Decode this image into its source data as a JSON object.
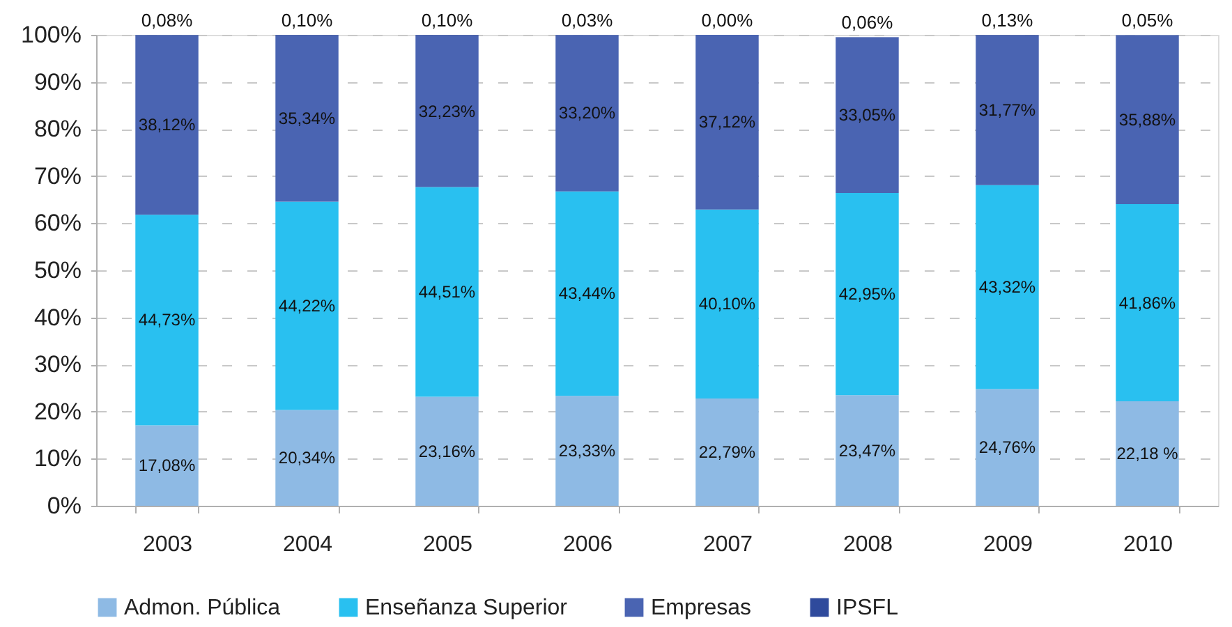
{
  "chart_data": {
    "type": "bar",
    "stacked": true,
    "categories": [
      "2003",
      "2004",
      "2005",
      "2006",
      "2007",
      "2008",
      "2009",
      "2010"
    ],
    "series": [
      {
        "name": "Admon. Pública",
        "color": "#8ebae4",
        "values": [
          17.08,
          20.34,
          23.16,
          23.33,
          22.79,
          23.47,
          24.76,
          22.18
        ],
        "value_labels": [
          "17,08%",
          "20,34%",
          "23,16%",
          "23,33%",
          "22,79%",
          "23,47%",
          "24,76%",
          "22,18 %"
        ]
      },
      {
        "name": "Enseñanza Superior",
        "color": "#29c0f0",
        "values": [
          44.73,
          44.22,
          44.51,
          43.44,
          40.1,
          42.95,
          43.32,
          41.86
        ],
        "value_labels": [
          "44,73%",
          "44,22%",
          "44,51%",
          "43,44%",
          "40,10%",
          "42,95%",
          "43,32%",
          "41,86%"
        ]
      },
      {
        "name": "Empresas",
        "color": "#4a64b2",
        "values": [
          38.12,
          35.34,
          32.23,
          33.2,
          37.12,
          33.05,
          31.77,
          35.88
        ],
        "value_labels": [
          "38,12%",
          "35,34%",
          "32,23%",
          "33,20%",
          "37,12%",
          "33,05%",
          "31,77%",
          "35,88%"
        ]
      },
      {
        "name": "IPSFL",
        "color": "#2f4a9c",
        "values": [
          0.08,
          0.1,
          0.1,
          0.03,
          0.0,
          0.06,
          0.13,
          0.05
        ],
        "value_labels": [
          "0,08%",
          "0,10%",
          "0,10%",
          "0,03%",
          "0,00%",
          "0,06%",
          "0,13%",
          "0,05%"
        ]
      }
    ],
    "ylim": [
      0,
      100
    ],
    "yticks": [
      {
        "value": 0,
        "label": "0%"
      },
      {
        "value": 10,
        "label": "10%"
      },
      {
        "value": 20,
        "label": "20%"
      },
      {
        "value": 30,
        "label": "30%"
      },
      {
        "value": 40,
        "label": "40%"
      },
      {
        "value": 50,
        "label": "50%"
      },
      {
        "value": 60,
        "label": "60%"
      },
      {
        "value": 70,
        "label": "70%"
      },
      {
        "value": 80,
        "label": "80%"
      },
      {
        "value": 90,
        "label": "90%"
      },
      {
        "value": 100,
        "label": "100%"
      }
    ],
    "grid": "y",
    "legend": "bottom"
  }
}
